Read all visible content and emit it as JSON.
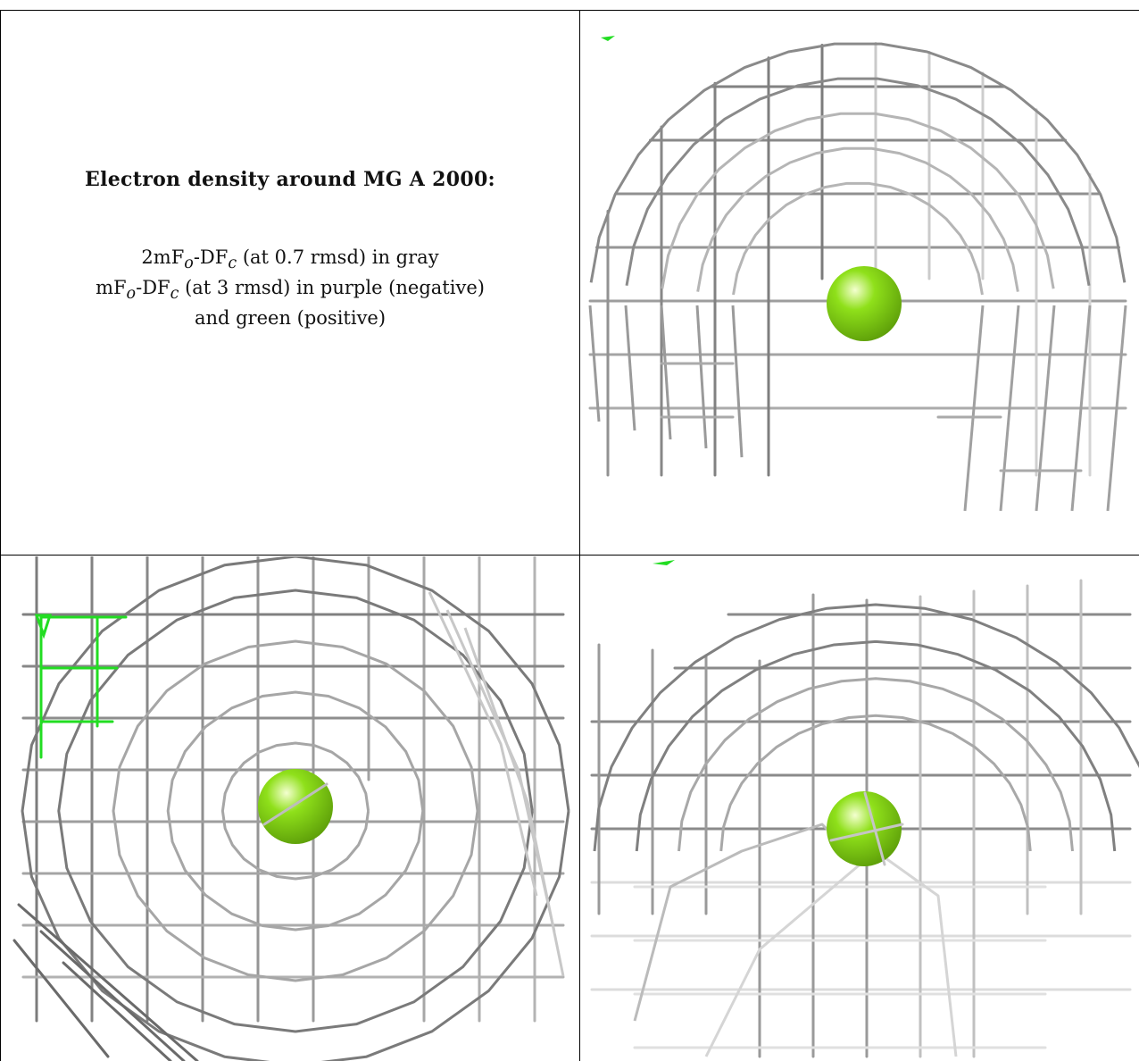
{
  "caption": {
    "title": "Electron density around MG A 2000:",
    "line1_prefix": "2mF",
    "line1_sub1": "o",
    "line1_mid": "-DF",
    "line1_sub2": "c",
    "line1_suffix": " (at 0.7 rmsd) in gray",
    "line2_prefix": "mF",
    "line2_sub1": "o",
    "line2_mid": "-DF",
    "line2_sub2": "c",
    "line2_suffix": " (at 3 rmsd) in purple (negative)",
    "line3": "and green (positive)"
  },
  "panels": [
    {
      "name": "view-top-right",
      "ion_color": "#8fe01a",
      "mesh_color": "#808080",
      "positive_color": "#22dd22"
    },
    {
      "name": "view-bottom-left",
      "ion_color": "#8fe01a",
      "mesh_color": "#808080",
      "positive_color": "#22dd22"
    },
    {
      "name": "view-bottom-right",
      "ion_color": "#8fe01a",
      "mesh_color": "#808080",
      "positive_color": "#22dd22"
    }
  ]
}
